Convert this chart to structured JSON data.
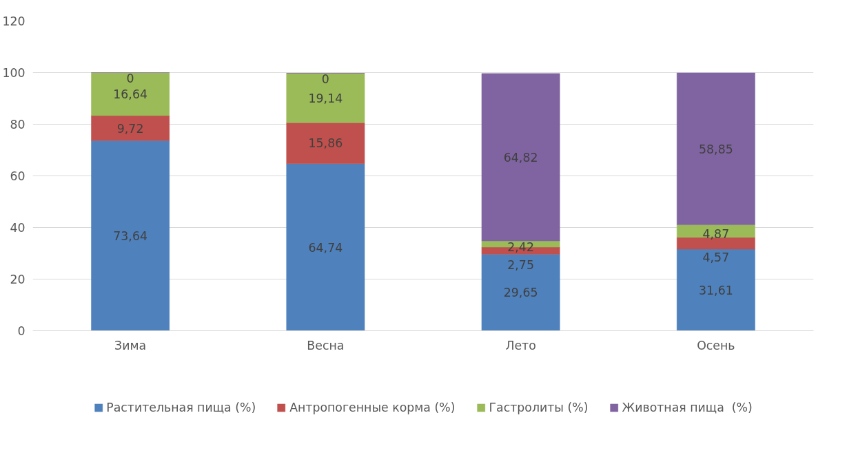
{
  "chart_data": {
    "type": "bar",
    "stacked": true,
    "categories": [
      "Зима",
      "Весна",
      "Лето",
      "Осень"
    ],
    "series": [
      {
        "name": "Растительная пища (%)",
        "color": "#4f81bd",
        "values": [
          73.64,
          64.74,
          29.65,
          31.61
        ],
        "value_labels": [
          "73,64",
          "64,74",
          "29,65",
          "31,61"
        ]
      },
      {
        "name": "Антропогенные корма (%)",
        "color": "#c0504d",
        "values": [
          9.72,
          15.86,
          2.75,
          4.57
        ],
        "value_labels": [
          "9,72",
          "15,86",
          "2,75",
          "4,57"
        ]
      },
      {
        "name": "Гастролиты (%)",
        "color": "#9bbb59",
        "values": [
          16.64,
          19.14,
          2.42,
          4.87
        ],
        "value_labels": [
          "16,64",
          "19,14",
          "2,42",
          "4,87"
        ]
      },
      {
        "name": "Животная пища  (%)",
        "color": "#8064a2",
        "values": [
          0,
          0,
          64.82,
          58.85
        ],
        "value_labels": [
          "0",
          "0",
          "64,82",
          "58,85"
        ]
      }
    ],
    "ylim": [
      0,
      120
    ],
    "yticks": [
      0,
      20,
      40,
      60,
      80,
      100,
      120
    ],
    "grid": "y",
    "legend": "bottom"
  }
}
